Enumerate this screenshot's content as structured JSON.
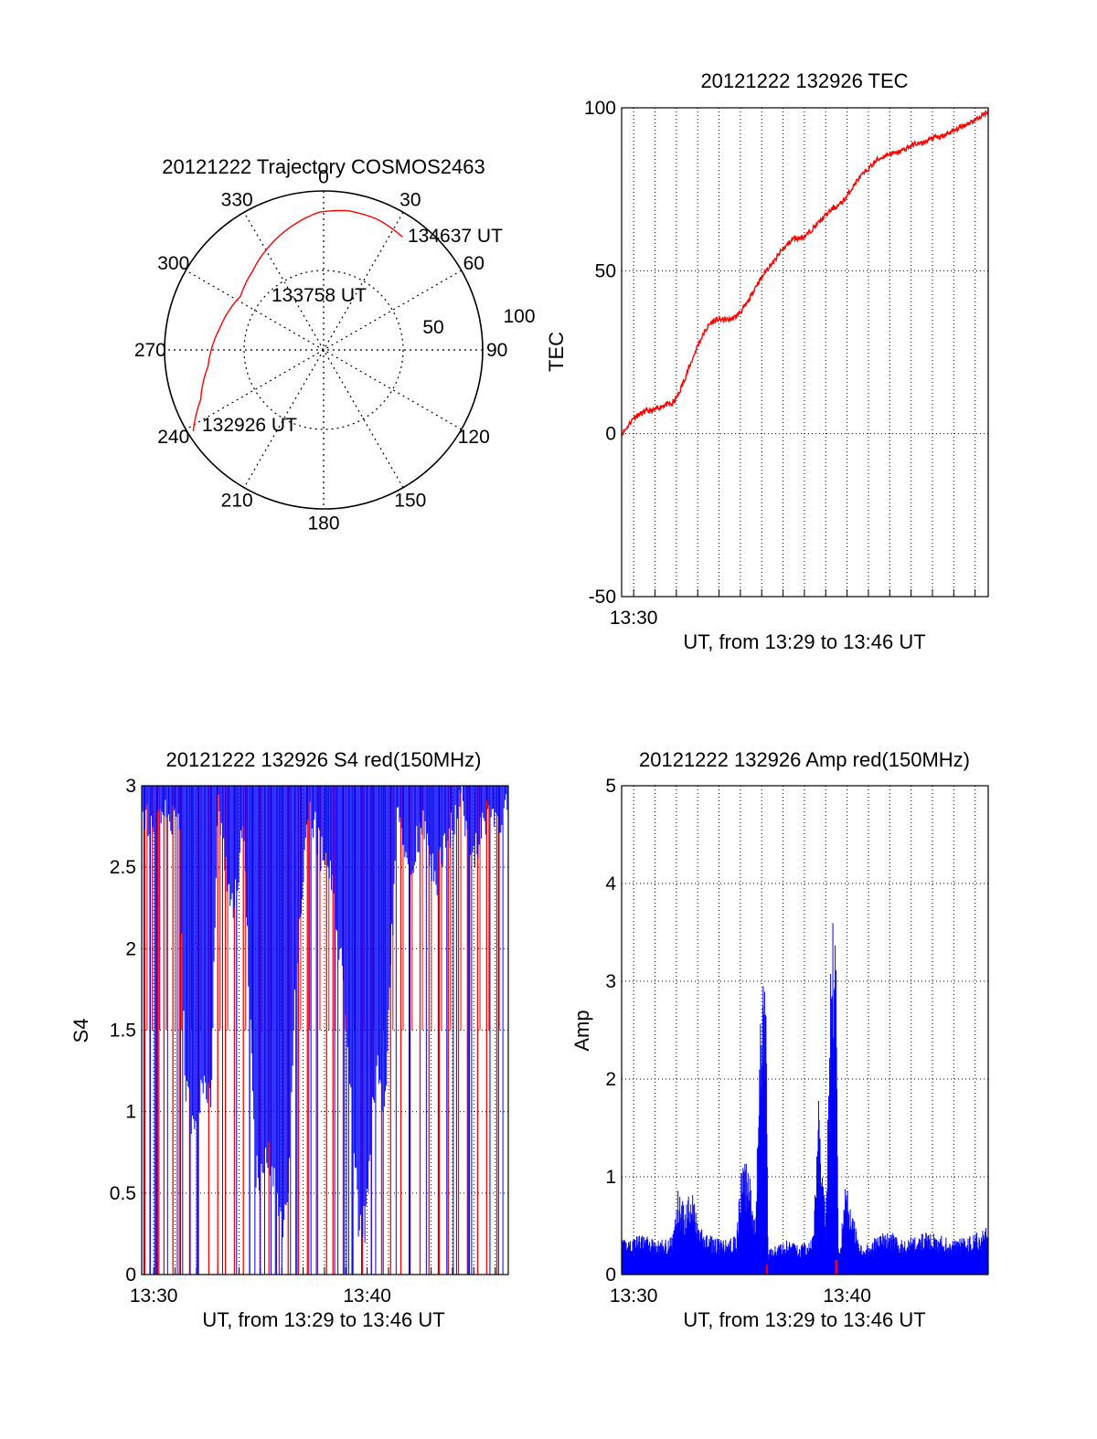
{
  "colors": {
    "red": "#ff0000",
    "blue": "#0000ff",
    "black": "#000000",
    "grid": "#000000"
  },
  "chart_data": [
    {
      "type": "polar",
      "title": "20121222 Trajectory COSMOS2463",
      "azimuth_labels": [
        "0",
        "30",
        "60",
        "90",
        "120",
        "150",
        "180",
        "210",
        "240",
        "270",
        "300",
        "330"
      ],
      "ring_labels": [
        "50",
        "100"
      ],
      "trajectory": {
        "color": "red",
        "points": [
          {
            "az": 238,
            "zen": 87
          },
          {
            "az": 248,
            "zen": 75
          },
          {
            "az": 262,
            "zen": 66
          },
          {
            "az": 282,
            "zen": 60
          },
          {
            "az": 303,
            "zen": 56
          },
          {
            "az": 318,
            "zen": 60
          },
          {
            "az": 334,
            "zen": 67
          },
          {
            "az": 347,
            "zen": 73
          },
          {
            "az": 358,
            "zen": 78
          },
          {
            "az": 10,
            "zen": 80
          },
          {
            "az": 22,
            "zen": 80
          },
          {
            "az": 35,
            "zen": 78
          }
        ]
      },
      "annotations": [
        {
          "text": "132926 UT",
          "az": 238,
          "zen": 87
        },
        {
          "text": "133758 UT",
          "az": 303,
          "zen": 56
        },
        {
          "text": "134637 UT",
          "az": 35,
          "zen": 78
        }
      ]
    },
    {
      "type": "line",
      "title": "20121222 132926 TEC",
      "xlabel": "UT, from 13:29 to 13:46 UT",
      "ylabel": "TEC",
      "xlim": [
        13.4906,
        13.7769
      ],
      "ylim": [
        -50,
        100
      ],
      "yticks": [
        -50,
        0,
        50,
        100
      ],
      "xticks": [
        {
          "v": 13.5,
          "label": "13:30"
        }
      ],
      "grid": true,
      "series": [
        {
          "color": "red",
          "x": [
            13.4906,
            13.495,
            13.5,
            13.505,
            13.51,
            13.515,
            13.52,
            13.525,
            13.53,
            13.535,
            13.54,
            13.545,
            13.55,
            13.555,
            13.56,
            13.565,
            13.57,
            13.575,
            13.58,
            13.585,
            13.59,
            13.595,
            13.6,
            13.605,
            13.61,
            13.615,
            13.62,
            13.625,
            13.63,
            13.635,
            13.64,
            13.645,
            13.65,
            13.655,
            13.66,
            13.665,
            13.67,
            13.675,
            13.68,
            13.685,
            13.69,
            13.695,
            13.7,
            13.705,
            13.71,
            13.715,
            13.72,
            13.725,
            13.73,
            13.735,
            13.74,
            13.745,
            13.75,
            13.755,
            13.76,
            13.765,
            13.77,
            13.7769
          ],
          "y": [
            0,
            2,
            5,
            6,
            7,
            7,
            8,
            9,
            9,
            12,
            17,
            22,
            27,
            31,
            34,
            35,
            35,
            35,
            36,
            38,
            41,
            45,
            48,
            51,
            53,
            56,
            58,
            60,
            60,
            61,
            63,
            65,
            67,
            69,
            70,
            72,
            75,
            78,
            80,
            82,
            84,
            85,
            86,
            86,
            87,
            88,
            89,
            89,
            90,
            91,
            91,
            92,
            93,
            94,
            95,
            96,
            97,
            99
          ]
        }
      ]
    },
    {
      "type": "line",
      "title": "20121222 132926 S4 red(150MHz)",
      "xlabel": "UT, from 13:29 to 13:46 UT",
      "ylabel": "S4",
      "xlim": [
        13.4906,
        13.7769
      ],
      "ylim": [
        0,
        3
      ],
      "yticks": [
        0,
        0.5,
        1,
        1.5,
        2,
        2.5,
        3
      ],
      "xticks": [
        {
          "v": 13.5,
          "label": "13:30"
        },
        {
          "v": 13.6667,
          "label": "13:40"
        }
      ],
      "grid": true,
      "series": [
        {
          "color": "blue",
          "x": [
            13.49,
            13.5,
            13.51,
            13.52,
            13.525,
            13.53,
            13.535,
            13.54,
            13.545,
            13.55,
            13.56,
            13.57,
            13.58,
            13.59,
            13.6,
            13.605,
            13.61,
            13.62,
            13.63,
            13.64,
            13.65,
            13.66,
            13.665,
            13.67,
            13.675,
            13.68,
            13.69,
            13.7,
            13.71,
            13.72,
            13.73,
            13.74,
            13.75,
            13.76,
            13.77,
            13.777
          ],
          "y": [
            2.9,
            2.7,
            2.8,
            2.75,
            1.1,
            0.95,
            1.0,
            1.2,
            1.1,
            2.9,
            2.2,
            2.7,
            0.6,
            0.7,
            0.3,
            0.35,
            1.7,
            2.9,
            2.6,
            2.4,
            1.6,
            0.3,
            0.3,
            0.9,
            1.3,
            0.9,
            2.8,
            2.5,
            2.8,
            2.4,
            2.7,
            2.9,
            2.6,
            2.8,
            2.7,
            2.9
          ]
        },
        {
          "color": "red",
          "x": [
            13.493,
            13.497,
            13.503,
            13.508,
            13.515,
            13.52,
            13.528,
            13.535,
            13.543,
            13.55,
            13.556,
            13.563,
            13.57,
            13.575,
            13.583,
            13.59,
            13.598,
            13.605,
            13.613,
            13.62,
            13.628,
            13.635,
            13.64,
            13.648,
            13.655,
            13.663,
            13.67,
            13.678,
            13.685,
            13.693,
            13.7,
            13.708,
            13.715,
            13.723,
            13.73,
            13.738,
            13.745,
            13.753,
            13.76,
            13.768
          ],
          "y": [
            3,
            2.7,
            3,
            3,
            3,
            3,
            3,
            3,
            3,
            3,
            3,
            3,
            3,
            3,
            3,
            3,
            3,
            3,
            3,
            3,
            3,
            3,
            3,
            3,
            3,
            3,
            3,
            3,
            3,
            3,
            3,
            3,
            3,
            3,
            3,
            3,
            3,
            3,
            3,
            3
          ]
        }
      ]
    },
    {
      "type": "line",
      "title": "20121222 132926 Amp red(150MHz)",
      "xlabel": "UT, from 13:29 to 13:46 UT",
      "ylabel": "Amp",
      "xlim": [
        13.4906,
        13.7769
      ],
      "ylim": [
        0,
        5
      ],
      "yticks": [
        0,
        1,
        2,
        3,
        4,
        5
      ],
      "xticks": [
        {
          "v": 13.5,
          "label": "13:30"
        },
        {
          "v": 13.6667,
          "label": "13:40"
        }
      ],
      "grid": true,
      "series": [
        {
          "color": "blue",
          "x": [
            13.4906,
            13.5,
            13.51,
            13.52,
            13.53,
            13.535,
            13.54,
            13.545,
            13.55,
            13.56,
            13.57,
            13.58,
            13.585,
            13.59,
            13.595,
            13.6,
            13.603,
            13.605,
            13.607,
            13.61,
            13.62,
            13.63,
            13.64,
            13.645,
            13.65,
            13.655,
            13.658,
            13.66,
            13.662,
            13.665,
            13.67,
            13.675,
            13.68,
            13.69,
            13.7,
            13.71,
            13.72,
            13.73,
            13.74,
            13.75,
            13.76,
            13.77,
            13.7769
          ],
          "y": [
            0.35,
            0.4,
            0.4,
            0.35,
            0.4,
            0.9,
            0.7,
            1.0,
            0.5,
            0.4,
            0.35,
            0.4,
            1.2,
            1.1,
            0.5,
            3.1,
            3.4,
            0.2,
            0.3,
            0.3,
            0.35,
            0.3,
            0.4,
            2.0,
            0.5,
            4.0,
            3.6,
            0.2,
            0.4,
            1.0,
            0.7,
            0.4,
            0.3,
            0.4,
            0.45,
            0.35,
            0.4,
            0.45,
            0.4,
            0.35,
            0.4,
            0.45,
            0.5
          ]
        },
        {
          "color": "red",
          "x": [
            13.6033,
            13.6043,
            13.6573,
            13.6593
          ],
          "y": [
            0.1,
            0.1,
            0.15,
            0.15
          ]
        }
      ]
    }
  ]
}
